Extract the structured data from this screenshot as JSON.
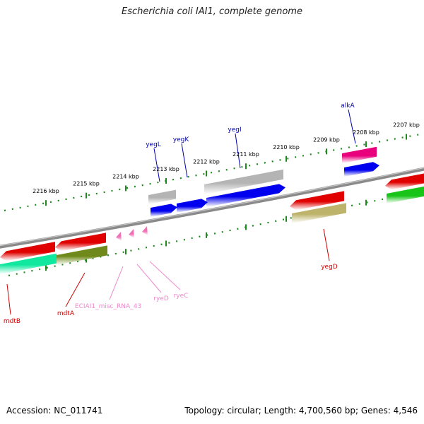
{
  "title": "Escherichia coli IAI1, complete genome",
  "footer": {
    "accession": "Accession: NC_011741",
    "topology": "Topology: circular; Length: 4,700,560 bp; Genes: 4,546"
  },
  "colors": {
    "backbone": "#8a8a8a",
    "ticks": "#1f8a1f",
    "red": "#e00000",
    "blue": "#0000ee",
    "grey": "#b4b4b4",
    "magenta": "#e8007c",
    "green": "#18c418",
    "aqua": "#10e8a0",
    "olive": "#6f8a1a",
    "khaki": "#bdb36b",
    "pink": "#f070b8",
    "label_blue": "#0000aa",
    "label_red": "#cc0000",
    "label_pink": "#ee88cc"
  },
  "scale": {
    "labels": [
      "2216 kbp",
      "2215 kbp",
      "2214 kbp",
      "2213 kbp",
      "2212 kbp",
      "2211 kbp",
      "2210 kbp",
      "2209 kbp",
      "2208 kbp",
      "2207 kbp"
    ]
  },
  "genes": [
    {
      "name": "alkA",
      "label_color": "blue"
    },
    {
      "name": "yegI",
      "label_color": "blue"
    },
    {
      "name": "yegK",
      "label_color": "blue"
    },
    {
      "name": "yegL",
      "label_color": "blue"
    },
    {
      "name": "yegD",
      "label_color": "red"
    },
    {
      "name": "mdtA",
      "label_color": "red"
    },
    {
      "name": "mdtB",
      "label_color": "red"
    },
    {
      "name": "ECIAI1_misc_RNA_43",
      "label_color": "pink"
    },
    {
      "name": "ryeD",
      "label_color": "pink"
    },
    {
      "name": "ryeC",
      "label_color": "pink"
    }
  ]
}
